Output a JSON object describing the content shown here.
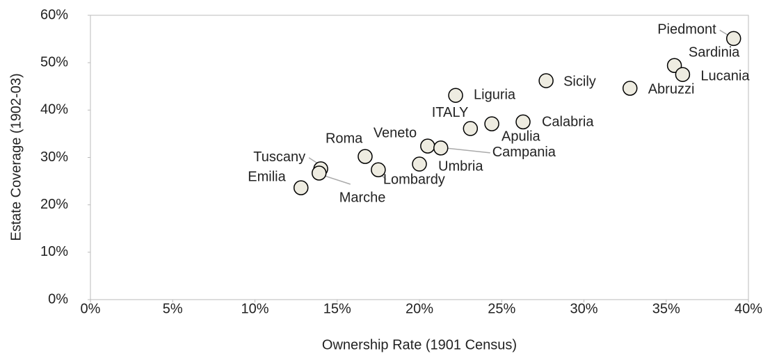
{
  "chart_data": {
    "type": "scatter",
    "x_label": "Ownership Rate (1901 Census)",
    "y_label": "Estate Coverage (1902-03)",
    "categories": [
      "Piedmont",
      "Sardinia",
      "Lucania",
      "Abruzzi",
      "Sicily",
      "Liguria",
      "Calabria",
      "Apulia",
      "ITALY",
      "Veneto",
      "Campania",
      "Umbria",
      "Roma",
      "Lombardy",
      "Tuscany",
      "Marche",
      "Emilia"
    ],
    "x": [
      39.1,
      35.5,
      36.0,
      32.8,
      27.7,
      22.2,
      26.3,
      24.4,
      23.1,
      20.5,
      21.3,
      20.0,
      16.7,
      17.5,
      14.0,
      13.9,
      12.8
    ],
    "values": [
      55.1,
      49.4,
      47.5,
      44.6,
      46.2,
      43.1,
      37.5,
      37.1,
      36.1,
      32.4,
      32.0,
      28.6,
      30.2,
      27.4,
      27.6,
      26.7,
      23.6
    ],
    "color": "#eeece1",
    "xlim": [
      0,
      40
    ],
    "xticks": [
      {
        "value": 0,
        "label": "0%"
      },
      {
        "value": 5,
        "label": "5%"
      },
      {
        "value": 10,
        "label": "10%"
      },
      {
        "value": 15,
        "label": "15%"
      },
      {
        "value": 20,
        "label": "20%"
      },
      {
        "value": 25,
        "label": "25%"
      },
      {
        "value": 30,
        "label": "30%"
      },
      {
        "value": 35,
        "label": "35%"
      },
      {
        "value": 40,
        "label": "40%"
      }
    ],
    "ylim": [
      0,
      60
    ],
    "yticks": [
      {
        "value": 0,
        "label": "0%"
      },
      {
        "value": 10,
        "label": "10%"
      },
      {
        "value": 20,
        "label": "20%"
      },
      {
        "value": 30,
        "label": "30%"
      },
      {
        "value": 40,
        "label": "40%"
      },
      {
        "value": 50,
        "label": "50%"
      },
      {
        "value": 60,
        "label": "60%"
      }
    ]
  }
}
